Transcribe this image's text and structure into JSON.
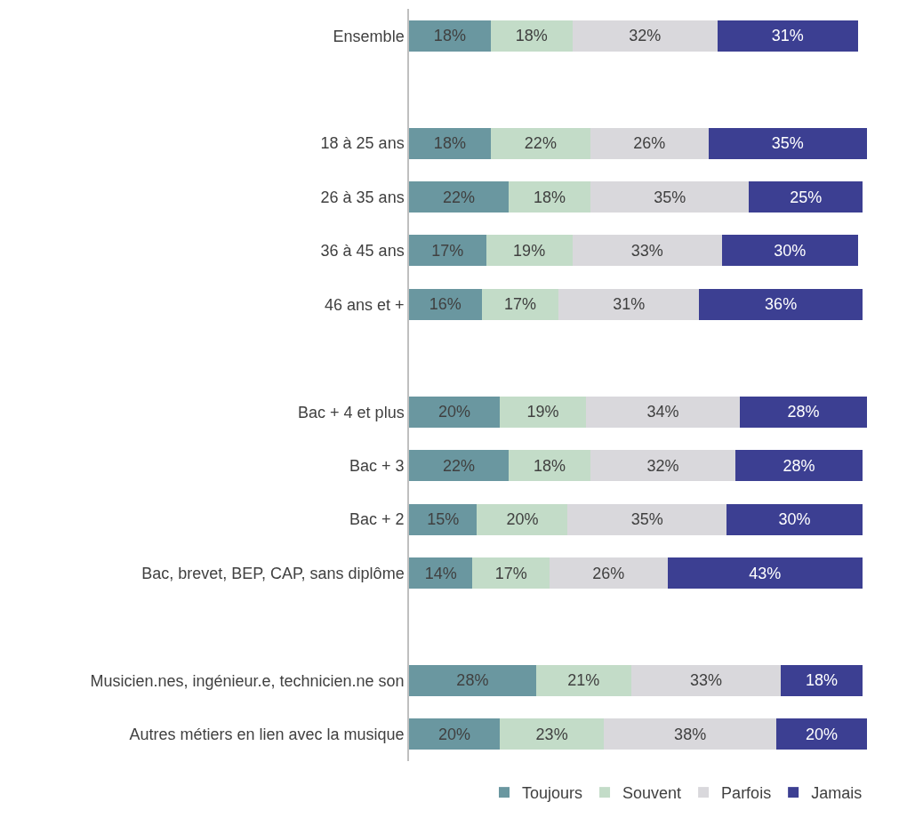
{
  "chart_data": {
    "type": "bar",
    "orientation": "horizontal",
    "stacked": true,
    "legend": "bottom right",
    "tick_labels": "y",
    "xlim": [
      0,
      101
    ],
    "categories": [
      "Ensemble",
      null,
      "18 à 25 ans",
      "26 à 35 ans",
      "36 à 45 ans",
      "46 ans et +",
      null,
      "Bac + 4 et plus",
      "Bac + 3",
      "Bac + 2",
      "Bac, brevet, BEP, CAP, sans diplôme",
      null,
      "Musicien.nes, ingénieur.e, technicien.ne son",
      "Autres métiers en lien avec la musique"
    ],
    "series": [
      {
        "name": "Toujours",
        "color": "#6a97a0",
        "values": [
          18,
          null,
          18,
          22,
          17,
          16,
          null,
          20,
          22,
          15,
          14,
          null,
          28,
          20
        ],
        "value_labels": [
          "18%",
          null,
          "18%",
          "22%",
          "17%",
          "16%",
          null,
          "20%",
          "22%",
          "15%",
          "14%",
          null,
          "28%",
          "20%"
        ]
      },
      {
        "name": "Souvent",
        "color": "#c3dcc8",
        "values": [
          18,
          null,
          22,
          18,
          19,
          17,
          null,
          19,
          18,
          20,
          17,
          null,
          21,
          23
        ],
        "value_labels": [
          "18%",
          null,
          "22%",
          "18%",
          "19%",
          "17%",
          null,
          "19%",
          "18%",
          "20%",
          "17%",
          null,
          "21%",
          "23%"
        ]
      },
      {
        "name": "Parfois",
        "color": "#d9d8dc",
        "values": [
          32,
          null,
          26,
          35,
          33,
          31,
          null,
          34,
          32,
          35,
          26,
          null,
          33,
          38
        ],
        "value_labels": [
          "32%",
          null,
          "26%",
          "35%",
          "33%",
          "31%",
          null,
          "34%",
          "32%",
          "35%",
          "26%",
          null,
          "33%",
          "38%"
        ]
      },
      {
        "name": "Jamais",
        "color": "#3c3f92",
        "values": [
          31,
          null,
          35,
          25,
          30,
          36,
          null,
          28,
          28,
          30,
          43,
          null,
          18,
          20
        ],
        "value_labels": [
          "31%",
          null,
          "35%",
          "25%",
          "30%",
          "36%",
          null,
          "28%",
          "28%",
          "30%",
          "43%",
          null,
          "18%",
          "20%"
        ]
      }
    ]
  }
}
